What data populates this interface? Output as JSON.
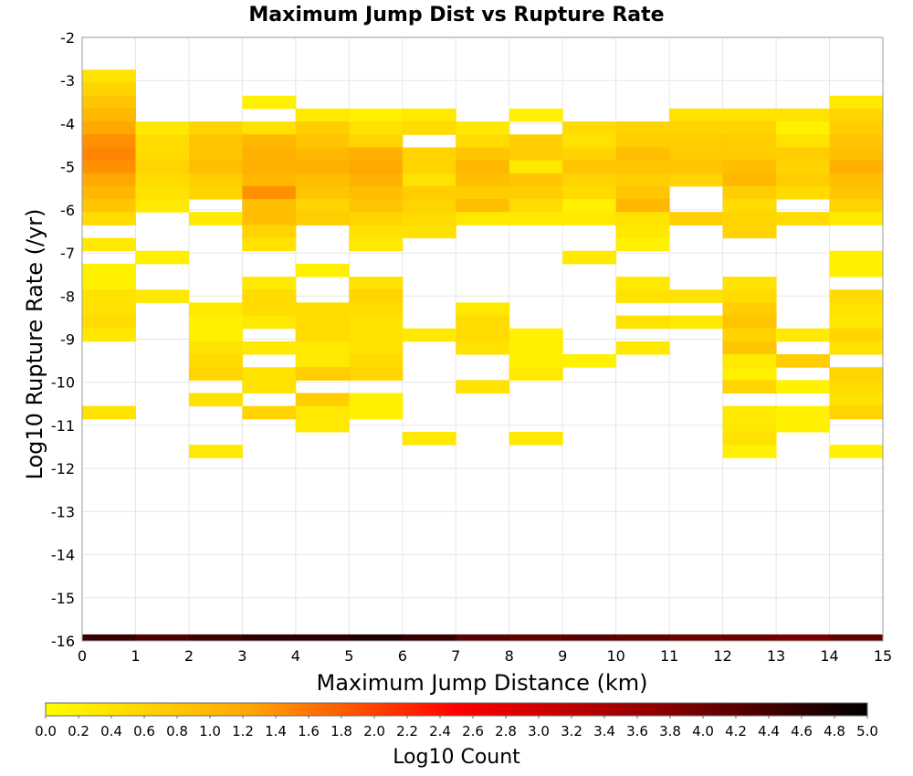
{
  "chart_data": {
    "type": "heatmap",
    "title": "Maximum Jump Dist vs Rupture Rate",
    "xlabel": "Maximum Jump Distance (km)",
    "ylabel": "Log10 Rupture Rate (/yr)",
    "xlim": [
      0,
      15
    ],
    "ylim": [
      -16,
      -2
    ],
    "x_ticks": [
      0,
      1,
      2,
      3,
      4,
      5,
      6,
      7,
      8,
      9,
      10,
      11,
      12,
      13,
      14,
      15
    ],
    "y_ticks": [
      -2,
      -3,
      -4,
      -5,
      -6,
      -7,
      -8,
      -9,
      -10,
      -11,
      -12,
      -13,
      -14,
      -15,
      -16
    ],
    "grid": true,
    "x_bin_width": 1,
    "y_bin_height": 0.3,
    "colorbar": {
      "label": "Log10 Count",
      "range": [
        0,
        5
      ],
      "ticks": [
        "0.0",
        "0.2",
        "0.4",
        "0.6",
        "0.8",
        "1.0",
        "1.2",
        "1.4",
        "1.6",
        "1.8",
        "2.0",
        "2.2",
        "2.4",
        "2.6",
        "2.8",
        "3.0",
        "3.2",
        "3.4",
        "3.6",
        "3.8",
        "4.0",
        "4.2",
        "4.4",
        "4.6",
        "4.8",
        "5.0"
      ],
      "placement": "bottom",
      "colors": [
        "#ffff00",
        "#ffa500",
        "#ff0000",
        "#8b0000",
        "#000000"
      ]
    },
    "columns": [
      {
        "x": 0,
        "cells": [
          [
            -2.9,
            0.4
          ],
          [
            -3.2,
            0.6
          ],
          [
            -3.5,
            0.8
          ],
          [
            -3.8,
            1.0
          ],
          [
            -4.1,
            1.2
          ],
          [
            -4.4,
            1.4
          ],
          [
            -4.7,
            1.5
          ],
          [
            -5.0,
            1.4
          ],
          [
            -5.3,
            1.2
          ],
          [
            -5.6,
            1.0
          ],
          [
            -5.9,
            0.8
          ],
          [
            -6.2,
            0.5
          ],
          [
            -6.8,
            0.3
          ],
          [
            -7.4,
            0.2
          ],
          [
            -7.7,
            0.2
          ],
          [
            -8.0,
            0.4
          ],
          [
            -8.3,
            0.4
          ],
          [
            -8.6,
            0.5
          ],
          [
            -8.9,
            0.3
          ],
          [
            -10.7,
            0.4
          ]
        ]
      },
      {
        "x": 1,
        "cells": [
          [
            -4.1,
            0.3
          ],
          [
            -4.4,
            0.5
          ],
          [
            -4.7,
            0.5
          ],
          [
            -5.0,
            0.6
          ],
          [
            -5.3,
            0.5
          ],
          [
            -5.6,
            0.4
          ],
          [
            -5.9,
            0.3
          ],
          [
            -7.1,
            0.2
          ],
          [
            -8.0,
            0.3
          ]
        ]
      },
      {
        "x": 2,
        "cells": [
          [
            -4.1,
            0.6
          ],
          [
            -4.4,
            0.8
          ],
          [
            -4.7,
            0.8
          ],
          [
            -5.0,
            0.9
          ],
          [
            -5.3,
            0.7
          ],
          [
            -5.6,
            0.6
          ],
          [
            -6.2,
            0.3
          ],
          [
            -8.3,
            0.3
          ],
          [
            -8.6,
            0.2
          ],
          [
            -8.9,
            0.2
          ],
          [
            -9.2,
            0.4
          ],
          [
            -9.5,
            0.5
          ],
          [
            -9.8,
            0.6
          ],
          [
            -10.4,
            0.4
          ],
          [
            -11.6,
            0.3
          ]
        ]
      },
      {
        "x": 3,
        "cells": [
          [
            -3.5,
            0.2
          ],
          [
            -4.1,
            0.4
          ],
          [
            -4.4,
            1.0
          ],
          [
            -4.7,
            1.1
          ],
          [
            -5.0,
            1.1
          ],
          [
            -5.3,
            1.0
          ],
          [
            -5.6,
            1.4
          ],
          [
            -5.9,
            0.9
          ],
          [
            -6.2,
            0.9
          ],
          [
            -6.5,
            0.6
          ],
          [
            -6.8,
            0.4
          ],
          [
            -7.7,
            0.3
          ],
          [
            -8.0,
            0.5
          ],
          [
            -8.3,
            0.5
          ],
          [
            -8.6,
            0.3
          ],
          [
            -9.2,
            0.3
          ],
          [
            -9.8,
            0.4
          ],
          [
            -10.1,
            0.4
          ],
          [
            -10.7,
            0.6
          ]
        ]
      },
      {
        "x": 4,
        "cells": [
          [
            -3.8,
            0.3
          ],
          [
            -4.1,
            0.7
          ],
          [
            -4.4,
            0.8
          ],
          [
            -4.7,
            1.0
          ],
          [
            -5.0,
            1.1
          ],
          [
            -5.3,
            0.9
          ],
          [
            -5.6,
            0.8
          ],
          [
            -5.9,
            0.6
          ],
          [
            -6.2,
            0.7
          ],
          [
            -7.4,
            0.2
          ],
          [
            -8.3,
            0.5
          ],
          [
            -8.6,
            0.5
          ],
          [
            -8.9,
            0.5
          ],
          [
            -9.2,
            0.3
          ],
          [
            -9.5,
            0.3
          ],
          [
            -9.8,
            0.7
          ],
          [
            -10.4,
            0.7
          ],
          [
            -10.7,
            0.3
          ],
          [
            -11.0,
            0.3
          ]
        ]
      },
      {
        "x": 5,
        "cells": [
          [
            -3.8,
            0.2
          ],
          [
            -4.1,
            0.4
          ],
          [
            -4.4,
            0.6
          ],
          [
            -4.7,
            1.1
          ],
          [
            -5.0,
            1.2
          ],
          [
            -5.3,
            1.1
          ],
          [
            -5.6,
            0.9
          ],
          [
            -5.9,
            0.8
          ],
          [
            -6.2,
            0.6
          ],
          [
            -6.5,
            0.4
          ],
          [
            -6.8,
            0.3
          ],
          [
            -7.7,
            0.4
          ],
          [
            -8.0,
            0.6
          ],
          [
            -8.3,
            0.5
          ],
          [
            -8.6,
            0.4
          ],
          [
            -8.9,
            0.4
          ],
          [
            -9.2,
            0.4
          ],
          [
            -9.5,
            0.5
          ],
          [
            -9.8,
            0.6
          ],
          [
            -10.4,
            0.2
          ],
          [
            -10.7,
            0.2
          ]
        ]
      },
      {
        "x": 6,
        "cells": [
          [
            -3.8,
            0.3
          ],
          [
            -4.1,
            0.5
          ],
          [
            -4.7,
            0.6
          ],
          [
            -5.0,
            0.6
          ],
          [
            -5.3,
            0.4
          ],
          [
            -5.6,
            0.7
          ],
          [
            -5.9,
            0.6
          ],
          [
            -6.2,
            0.5
          ],
          [
            -6.5,
            0.4
          ],
          [
            -8.9,
            0.3
          ],
          [
            -11.3,
            0.3
          ]
        ]
      },
      {
        "x": 7,
        "cells": [
          [
            -4.1,
            0.3
          ],
          [
            -4.4,
            0.5
          ],
          [
            -4.7,
            0.8
          ],
          [
            -5.0,
            1.0
          ],
          [
            -5.3,
            0.9
          ],
          [
            -5.6,
            0.7
          ],
          [
            -5.9,
            0.9
          ],
          [
            -6.2,
            0.3
          ],
          [
            -8.3,
            0.3
          ],
          [
            -8.6,
            0.5
          ],
          [
            -8.9,
            0.5
          ],
          [
            -9.2,
            0.4
          ],
          [
            -10.1,
            0.4
          ]
        ]
      },
      {
        "x": 8,
        "cells": [
          [
            -3.8,
            0.2
          ],
          [
            -4.4,
            0.7
          ],
          [
            -4.7,
            0.7
          ],
          [
            -5.0,
            0.3
          ],
          [
            -5.3,
            0.8
          ],
          [
            -5.6,
            0.7
          ],
          [
            -5.9,
            0.5
          ],
          [
            -6.2,
            0.3
          ],
          [
            -8.9,
            0.2
          ],
          [
            -9.2,
            0.2
          ],
          [
            -9.5,
            0.2
          ],
          [
            -9.8,
            0.3
          ],
          [
            -11.3,
            0.3
          ]
        ]
      },
      {
        "x": 9,
        "cells": [
          [
            -4.1,
            0.5
          ],
          [
            -4.4,
            0.4
          ],
          [
            -4.7,
            0.6
          ],
          [
            -5.0,
            0.8
          ],
          [
            -5.3,
            0.6
          ],
          [
            -5.6,
            0.5
          ],
          [
            -5.9,
            0.2
          ],
          [
            -6.2,
            0.3
          ],
          [
            -7.1,
            0.3
          ],
          [
            -9.5,
            0.2
          ]
        ]
      },
      {
        "x": 10,
        "cells": [
          [
            -4.1,
            0.6
          ],
          [
            -4.4,
            0.7
          ],
          [
            -4.7,
            0.9
          ],
          [
            -5.0,
            0.8
          ],
          [
            -5.3,
            0.7
          ],
          [
            -5.6,
            0.8
          ],
          [
            -5.9,
            1.0
          ],
          [
            -6.2,
            0.4
          ],
          [
            -6.5,
            0.3
          ],
          [
            -6.8,
            0.2
          ],
          [
            -7.7,
            0.3
          ],
          [
            -8.0,
            0.4
          ],
          [
            -8.6,
            0.4
          ],
          [
            -9.2,
            0.3
          ]
        ]
      },
      {
        "x": 11,
        "cells": [
          [
            -3.8,
            0.4
          ],
          [
            -4.1,
            0.6
          ],
          [
            -4.4,
            0.7
          ],
          [
            -4.7,
            0.7
          ],
          [
            -5.0,
            0.8
          ],
          [
            -5.3,
            0.6
          ],
          [
            -6.2,
            0.7
          ],
          [
            -8.0,
            0.4
          ],
          [
            -8.6,
            0.3
          ]
        ]
      },
      {
        "x": 12,
        "cells": [
          [
            -3.8,
            0.4
          ],
          [
            -4.1,
            0.6
          ],
          [
            -4.4,
            0.7
          ],
          [
            -4.7,
            0.7
          ],
          [
            -5.0,
            0.9
          ],
          [
            -5.3,
            1.0
          ],
          [
            -5.6,
            0.7
          ],
          [
            -5.9,
            0.5
          ],
          [
            -6.2,
            0.6
          ],
          [
            -6.5,
            0.6
          ],
          [
            -7.7,
            0.4
          ],
          [
            -8.0,
            0.5
          ],
          [
            -8.3,
            0.7
          ],
          [
            -8.6,
            0.8
          ],
          [
            -8.9,
            0.6
          ],
          [
            -9.2,
            0.8
          ],
          [
            -9.5,
            0.3
          ],
          [
            -9.8,
            0.2
          ],
          [
            -10.1,
            0.6
          ],
          [
            -10.7,
            0.3
          ],
          [
            -11.0,
            0.3
          ],
          [
            -11.3,
            0.4
          ],
          [
            -11.6,
            0.2
          ]
        ]
      },
      {
        "x": 13,
        "cells": [
          [
            -3.8,
            0.4
          ],
          [
            -4.1,
            0.2
          ],
          [
            -4.4,
            0.4
          ],
          [
            -4.7,
            0.7
          ],
          [
            -5.0,
            0.6
          ],
          [
            -5.3,
            0.7
          ],
          [
            -5.6,
            0.5
          ],
          [
            -6.2,
            0.5
          ],
          [
            -8.9,
            0.3
          ],
          [
            -9.5,
            0.7
          ],
          [
            -10.1,
            0.2
          ],
          [
            -10.7,
            0.2
          ],
          [
            -11.0,
            0.2
          ]
        ]
      },
      {
        "x": 14,
        "cells": [
          [
            -3.5,
            0.3
          ],
          [
            -3.8,
            0.6
          ],
          [
            -4.1,
            0.7
          ],
          [
            -4.4,
            0.8
          ],
          [
            -4.7,
            0.9
          ],
          [
            -5.0,
            1.1
          ],
          [
            -5.3,
            0.9
          ],
          [
            -5.6,
            0.8
          ],
          [
            -5.9,
            0.6
          ],
          [
            -6.2,
            0.3
          ],
          [
            -7.1,
            0.2
          ],
          [
            -7.4,
            0.2
          ],
          [
            -8.0,
            0.5
          ],
          [
            -8.3,
            0.4
          ],
          [
            -8.6,
            0.3
          ],
          [
            -8.9,
            0.6
          ],
          [
            -9.2,
            0.4
          ],
          [
            -9.8,
            0.6
          ],
          [
            -10.1,
            0.5
          ],
          [
            -10.4,
            0.4
          ],
          [
            -10.7,
            0.6
          ],
          [
            -11.6,
            0.2
          ]
        ]
      }
    ],
    "baseline_row": {
      "y": -16.0,
      "values": [
        4.5,
        4.3,
        4.4,
        4.6,
        4.6,
        4.7,
        4.5,
        4.2,
        4.1,
        4.2,
        4.1,
        4.0,
        4.0,
        3.9,
        4.1
      ]
    }
  }
}
